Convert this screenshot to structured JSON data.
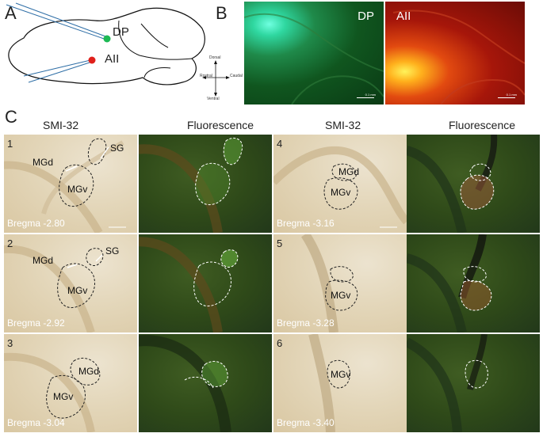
{
  "panels": {
    "a": "A",
    "b": "B",
    "c": "C"
  },
  "schematic": {
    "dp_label": "DP",
    "aii_label": "AII",
    "dp_color": "#1db954",
    "aii_color": "#e0201b"
  },
  "orientation": {
    "dorsal": "Dorsal",
    "ventral": "Ventral",
    "rostral": "Rostral",
    "caudal": "Caudal"
  },
  "micrographs": [
    {
      "label": "DP",
      "scale": "0.1 mm"
    },
    {
      "label": "AII",
      "scale": "0.1 mm"
    }
  ],
  "column_headers": [
    "SMI-32",
    "Fluorescence",
    "SMI-32",
    "Fluorescence"
  ],
  "rows": [
    {
      "num": "1",
      "bregma": "Bregma -2.80",
      "labels": [
        "MGd",
        "MGv",
        "SG"
      ]
    },
    {
      "num": "2",
      "bregma": "Bregma -2.92",
      "labels": [
        "MGd",
        "MGv",
        "SG"
      ]
    },
    {
      "num": "3",
      "bregma": "Bregma -3.04",
      "labels": [
        "MGd",
        "MGv"
      ]
    },
    {
      "num": "4",
      "bregma": "Bregma -3.16",
      "labels": [
        "MGd",
        "MGv"
      ]
    },
    {
      "num": "5",
      "bregma": "Bregma -3.28",
      "labels": [
        "MGv"
      ]
    },
    {
      "num": "6",
      "bregma": "Bregma -3.40",
      "labels": [
        "MGv"
      ]
    }
  ],
  "scale_text": "0.1 mm"
}
